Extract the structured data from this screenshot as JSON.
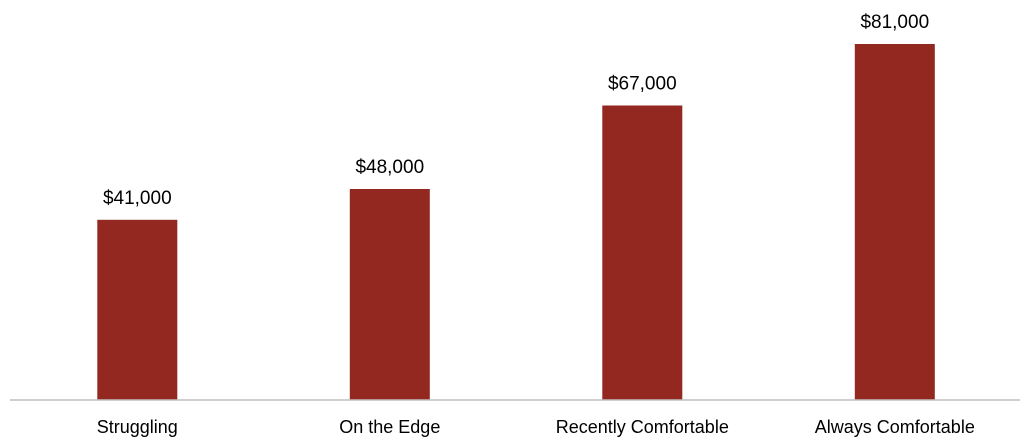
{
  "chart_data": {
    "type": "bar",
    "categories": [
      "Struggling",
      "On the Edge",
      "Recently Comfortable",
      "Always Comfortable"
    ],
    "values": [
      41000,
      48000,
      67000,
      81000
    ],
    "data_labels": [
      "$41,000",
      "$48,000",
      "$67,000",
      "$81,000"
    ],
    "title": "",
    "xlabel": "",
    "ylabel": "",
    "ylim": [
      0,
      90000
    ],
    "grid": false,
    "legend": "none",
    "bar_color": "#922820",
    "axis_color": "#bfbfbf"
  }
}
